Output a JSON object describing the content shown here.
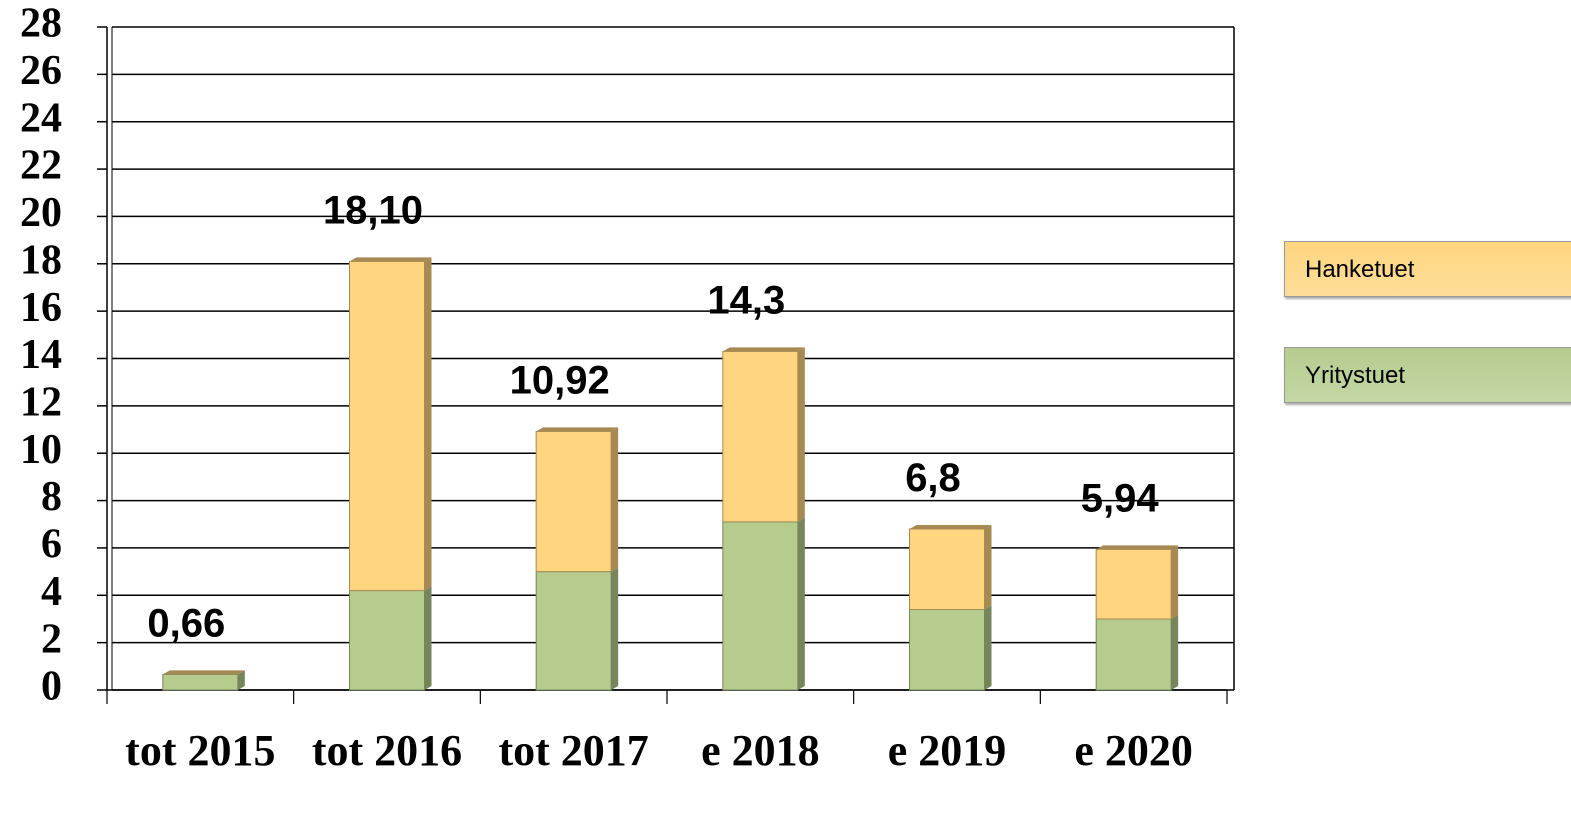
{
  "chart_data": {
    "type": "stacked_bar",
    "categories": [
      "tot 2015",
      "tot 2016",
      "tot 2017",
      "e 2018",
      "e 2019",
      "e 2020"
    ],
    "series": [
      {
        "name": "Yritystuet",
        "color": "#b5cc8e",
        "values": [
          0.66,
          4.2,
          5.0,
          7.1,
          3.4,
          3.0
        ]
      },
      {
        "name": "Hanketuet",
        "color": "#ffd580",
        "values": [
          0,
          13.9,
          5.92,
          7.2,
          3.4,
          2.94
        ]
      }
    ],
    "totals": [
      0.66,
      18.1,
      10.92,
      14.3,
      6.8,
      5.94
    ],
    "total_labels": [
      "0,66",
      "18,10",
      "10,92",
      "14,3",
      "6,8",
      "5,94"
    ],
    "ylim": [
      0,
      28
    ],
    "yticks": [
      0,
      2,
      4,
      6,
      8,
      10,
      12,
      14,
      16,
      18,
      20,
      22,
      24,
      26,
      28
    ],
    "grid": true
  }
}
